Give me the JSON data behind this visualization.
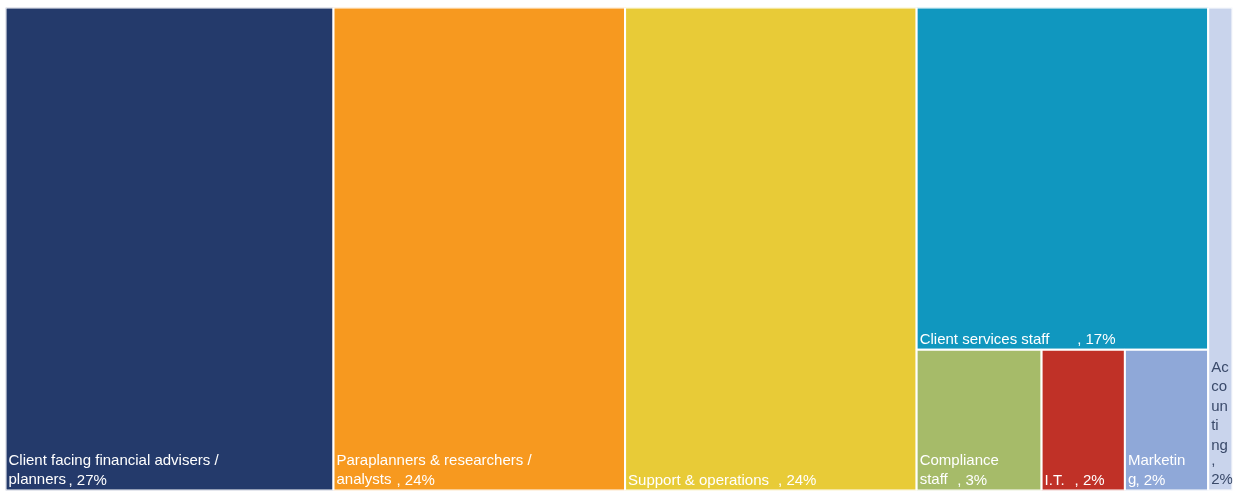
{
  "chart_data": {
    "type": "other",
    "categories": [
      "Client facing financial advisers / planners",
      "Paraplanners & researchers / analysts",
      "Support & operations",
      "Client services staff",
      "Compliance staff",
      "I.T.",
      "Marketing",
      "Accounting"
    ],
    "values": [
      27,
      24,
      24,
      17,
      3,
      2,
      2,
      2
    ],
    "value_labels": [
      ", 27%",
      ", 24%",
      ", 24%",
      ", 17%",
      ", 3%",
      ", 2%",
      ", 2%",
      ", 2%"
    ],
    "colors": [
      "#243a6b",
      "#f7991f",
      "#e8cb37",
      "#1097bf",
      "#a6bb69",
      "#c03127",
      "#8fa8d8",
      "#c9d4ec"
    ]
  }
}
